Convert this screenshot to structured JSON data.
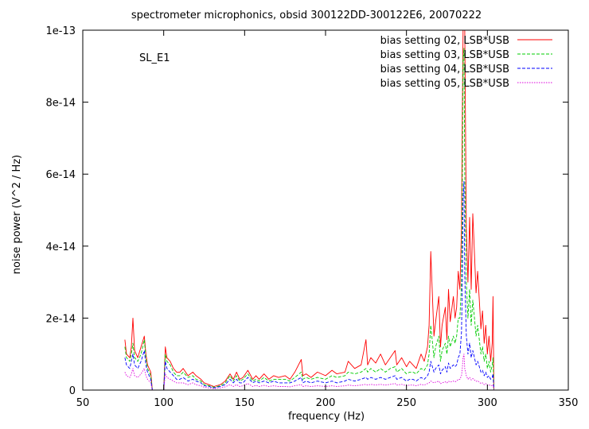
{
  "chart_data": {
    "type": "line",
    "title": "spectrometer microphonics, obsid 300122DD-300122E6, 20070222",
    "xlabel": "frequency (Hz)",
    "ylabel": "noise power (V^2 / Hz)",
    "annotation": "SL_E1",
    "xlim": [
      50,
      350
    ],
    "ylim": [
      0,
      1e-13
    ],
    "xticks": [
      50,
      100,
      150,
      200,
      250,
      300,
      350
    ],
    "xtick_labels": [
      "50",
      "100",
      "150",
      "200",
      "250",
      "300",
      "350"
    ],
    "yticks": [
      0,
      2e-14,
      4e-14,
      6e-14,
      8e-14,
      1e-13
    ],
    "ytick_labels": [
      "0",
      "2e-14",
      "4e-14",
      "6e-14",
      "8e-14",
      "1e-13"
    ],
    "grid": false,
    "legend_position": "top-right",
    "series": [
      {
        "name": "bias setting 02, LSB*USB",
        "color": "#ff0000",
        "dash": "solid",
        "x": [
          76,
          77,
          79,
          80,
          81,
          82,
          84,
          86,
          88,
          89,
          90,
          92,
          93,
          100,
          101,
          102,
          104,
          106,
          108,
          110,
          112,
          115,
          118,
          120,
          123,
          125,
          128,
          131,
          135,
          138,
          141,
          143,
          145,
          147,
          149,
          152,
          155,
          157,
          159,
          162,
          165,
          168,
          171,
          175,
          178,
          181,
          185,
          186,
          188,
          191,
          195,
          200,
          204,
          207,
          212,
          214,
          218,
          222,
          225,
          226,
          228,
          231,
          234,
          237,
          240,
          243,
          244,
          247,
          250,
          252,
          254,
          256,
          259,
          261,
          263,
          264,
          265,
          267,
          268,
          270,
          271,
          272,
          274,
          275,
          276,
          277,
          279,
          280,
          281,
          282,
          283,
          284,
          284.5,
          285,
          285.5,
          286,
          287,
          288,
          289,
          290,
          291,
          292,
          293,
          294,
          295,
          296,
          297,
          298,
          299,
          300,
          301,
          302,
          303,
          303.5,
          304
        ],
        "y": [
          1.4e-14,
          1e-14,
          9e-15,
          1.2e-14,
          2e-14,
          1.1e-14,
          9e-15,
          1.2e-14,
          1.5e-14,
          1e-14,
          7e-15,
          5e-15,
          0,
          0,
          1.2e-14,
          9e-15,
          8e-15,
          6e-15,
          5e-15,
          5e-15,
          6e-15,
          4e-15,
          5e-15,
          4e-15,
          3e-15,
          2e-15,
          1.5e-15,
          1e-15,
          1.5e-15,
          2.5e-15,
          4.5e-15,
          3e-15,
          5e-15,
          3e-15,
          3.5e-15,
          5.5e-15,
          3e-15,
          4e-15,
          3e-15,
          4.5e-15,
          3e-15,
          4e-15,
          3.5e-15,
          4e-15,
          3e-15,
          5e-15,
          8.5e-15,
          4e-15,
          4.5e-15,
          3.5e-15,
          5e-15,
          4e-15,
          5.5e-15,
          4.5e-15,
          5e-15,
          8e-15,
          6e-15,
          7e-15,
          1.4e-14,
          7e-15,
          9e-15,
          7.5e-15,
          1e-14,
          7e-15,
          9e-15,
          1.1e-14,
          7e-15,
          9e-15,
          6.5e-15,
          8e-15,
          7e-15,
          6e-15,
          1e-14,
          8e-15,
          1.2e-14,
          1.8e-14,
          3.85e-14,
          1.5e-14,
          1.9e-14,
          2.6e-14,
          1.2e-14,
          1.8e-14,
          2.3e-14,
          1.4e-14,
          2.8e-14,
          1.9e-14,
          2.6e-14,
          2e-14,
          2.3e-14,
          3.3e-14,
          2.8e-14,
          4.5e-14,
          7.5e-14,
          1e-13,
          1e-13,
          1e-13,
          4.5e-14,
          3e-14,
          4.8e-14,
          2.8e-14,
          4.9e-14,
          3.8e-14,
          2.7e-14,
          3.3e-14,
          2.5e-14,
          1.7e-14,
          2.2e-14,
          1.3e-14,
          1.8e-14,
          1e-14,
          1.5e-14,
          8e-15,
          1.3e-14,
          2.6e-14,
          0
        ]
      },
      {
        "name": "bias setting 03, LSB*USB",
        "color": "#00cc00",
        "dash": "dashed",
        "x": [
          76,
          77,
          79,
          80,
          81,
          82,
          84,
          86,
          88,
          89,
          90,
          92,
          93,
          100,
          101,
          102,
          104,
          106,
          108,
          110,
          112,
          115,
          118,
          120,
          123,
          125,
          128,
          131,
          135,
          138,
          141,
          143,
          145,
          147,
          149,
          152,
          155,
          157,
          159,
          162,
          165,
          168,
          171,
          175,
          178,
          181,
          185,
          186,
          188,
          191,
          195,
          200,
          204,
          207,
          212,
          214,
          218,
          222,
          225,
          226,
          228,
          231,
          234,
          237,
          240,
          243,
          244,
          247,
          250,
          252,
          254,
          256,
          259,
          261,
          263,
          264,
          265,
          267,
          268,
          270,
          271,
          272,
          274,
          275,
          276,
          277,
          279,
          280,
          281,
          282,
          283,
          284,
          284.5,
          285,
          285.5,
          286,
          287,
          288,
          289,
          290,
          291,
          292,
          293,
          294,
          295,
          296,
          297,
          298,
          299,
          300,
          301,
          302,
          303,
          303.5,
          304
        ],
        "y": [
          1.2e-14,
          9e-15,
          8e-15,
          1e-14,
          1.3e-14,
          9e-15,
          8e-15,
          1e-14,
          1.4e-14,
          9e-15,
          6e-15,
          4e-15,
          0,
          0,
          1e-14,
          8e-15,
          7e-15,
          5e-15,
          4e-15,
          4e-15,
          5e-15,
          3.5e-15,
          4e-15,
          3e-15,
          2.5e-15,
          1.5e-15,
          1.2e-15,
          8e-16,
          1.2e-15,
          2e-15,
          4e-15,
          2.5e-15,
          4e-15,
          2.5e-15,
          3e-15,
          4.5e-15,
          2.5e-15,
          3e-15,
          2.5e-15,
          3.5e-15,
          2.5e-15,
          3e-15,
          3e-15,
          3e-15,
          2.5e-15,
          3.5e-15,
          5e-15,
          3e-15,
          3.5e-15,
          3e-15,
          3.5e-15,
          3e-15,
          4e-15,
          3.5e-15,
          4e-15,
          5e-15,
          4.5e-15,
          5e-15,
          6e-15,
          5e-15,
          6e-15,
          5e-15,
          6e-15,
          5e-15,
          6e-15,
          6.5e-15,
          5e-15,
          6e-15,
          4.5e-15,
          5e-15,
          5e-15,
          4.5e-15,
          6e-15,
          5.5e-15,
          7e-15,
          1e-14,
          1.8e-14,
          9e-15,
          1.2e-14,
          1.5e-14,
          8e-15,
          1.1e-14,
          1.3e-14,
          1e-14,
          1.5e-14,
          1.2e-14,
          1.5e-14,
          1.3e-14,
          1.5e-14,
          2e-14,
          2e-14,
          3e-14,
          5.5e-14,
          9.2e-14,
          9.5e-14,
          6e-14,
          3e-14,
          2e-14,
          2.8e-14,
          1.8e-14,
          2.5e-14,
          2e-14,
          1.5e-14,
          1.8e-14,
          1.4e-14,
          1e-14,
          1.2e-14,
          8e-15,
          1e-14,
          6e-15,
          8e-15,
          5e-15,
          7e-15,
          9e-15,
          0
        ]
      },
      {
        "name": "bias setting 04, LSB*USB",
        "color": "#0000ff",
        "dash": "dashed",
        "x": [
          76,
          77,
          79,
          80,
          81,
          82,
          84,
          86,
          88,
          89,
          90,
          92,
          93,
          100,
          101,
          102,
          104,
          106,
          108,
          110,
          112,
          115,
          118,
          120,
          123,
          125,
          128,
          131,
          135,
          138,
          141,
          143,
          145,
          147,
          149,
          152,
          155,
          157,
          159,
          162,
          165,
          168,
          171,
          175,
          178,
          181,
          185,
          186,
          188,
          191,
          195,
          200,
          204,
          207,
          212,
          214,
          218,
          222,
          225,
          226,
          228,
          231,
          234,
          237,
          240,
          243,
          244,
          247,
          250,
          252,
          254,
          256,
          259,
          261,
          263,
          264,
          265,
          267,
          268,
          270,
          271,
          272,
          274,
          275,
          276,
          277,
          279,
          280,
          281,
          282,
          283,
          284,
          284.5,
          285,
          285.5,
          286,
          287,
          288,
          289,
          290,
          291,
          292,
          293,
          294,
          295,
          296,
          297,
          298,
          299,
          300,
          301,
          302,
          303,
          303.5,
          304
        ],
        "y": [
          9e-15,
          7e-15,
          6e-15,
          8e-15,
          1e-14,
          7e-15,
          6e-15,
          8e-15,
          1.1e-14,
          7e-15,
          5e-15,
          3e-15,
          0,
          0,
          8e-15,
          6e-15,
          5e-15,
          4e-15,
          3e-15,
          3e-15,
          3.5e-15,
          2.5e-15,
          3e-15,
          2.5e-15,
          2e-15,
          1.2e-15,
          1e-15,
          6e-16,
          1e-15,
          1.5e-15,
          3e-15,
          2e-15,
          3e-15,
          2e-15,
          2e-15,
          3.5e-15,
          2e-15,
          2.5e-15,
          2e-15,
          2.5e-15,
          2e-15,
          2.5e-15,
          2e-15,
          2e-15,
          2e-15,
          2.5e-15,
          3.5e-15,
          2e-15,
          2.5e-15,
          2e-15,
          2.5e-15,
          2e-15,
          2.5e-15,
          2e-15,
          2.5e-15,
          3e-15,
          2.5e-15,
          3e-15,
          3.5e-15,
          3e-15,
          3.5e-15,
          3e-15,
          3.5e-15,
          3e-15,
          3.5e-15,
          4e-15,
          3e-15,
          3.5e-15,
          2.5e-15,
          3e-15,
          3e-15,
          2.5e-15,
          3.5e-15,
          3e-15,
          4e-15,
          5e-15,
          8e-15,
          5e-15,
          6e-15,
          7e-15,
          4.5e-15,
          5.5e-15,
          6.5e-15,
          5e-15,
          7.5e-15,
          6e-15,
          7e-15,
          6.5e-15,
          7e-15,
          9e-15,
          1e-14,
          1.6e-14,
          3e-14,
          5.3e-14,
          5.8e-14,
          3.2e-14,
          1.5e-14,
          1e-14,
          1.3e-14,
          9e-15,
          1.1e-14,
          9e-15,
          7e-15,
          8e-15,
          6.5e-15,
          5e-15,
          5.5e-15,
          4e-15,
          5e-15,
          3.5e-15,
          4e-15,
          3e-15,
          3.5e-15,
          4.5e-15,
          0
        ]
      },
      {
        "name": "bias setting 05, LSB*USB",
        "color": "#dd00dd",
        "dash": "dotted",
        "x": [
          76,
          77,
          79,
          80,
          81,
          82,
          84,
          86,
          88,
          89,
          90,
          92,
          93,
          100,
          101,
          102,
          104,
          106,
          108,
          110,
          112,
          115,
          118,
          120,
          123,
          125,
          128,
          131,
          135,
          138,
          141,
          143,
          145,
          147,
          149,
          152,
          155,
          157,
          159,
          162,
          165,
          168,
          171,
          175,
          178,
          181,
          185,
          186,
          188,
          191,
          195,
          200,
          204,
          207,
          212,
          214,
          218,
          222,
          225,
          226,
          228,
          231,
          234,
          237,
          240,
          243,
          244,
          247,
          250,
          252,
          254,
          256,
          259,
          261,
          263,
          264,
          265,
          267,
          268,
          270,
          271,
          272,
          274,
          275,
          276,
          277,
          279,
          280,
          281,
          282,
          283,
          284,
          284.5,
          285,
          285.5,
          286,
          287,
          288,
          289,
          290,
          291,
          292,
          293,
          294,
          295,
          296,
          297,
          298,
          299,
          300,
          301,
          302,
          303,
          303.5,
          304
        ],
        "y": [
          5e-15,
          4e-15,
          3.5e-15,
          4.5e-15,
          6e-15,
          4e-15,
          3.5e-15,
          4.5e-15,
          6e-15,
          4e-15,
          3e-15,
          2e-15,
          0,
          0,
          4.5e-15,
          3.5e-15,
          3e-15,
          2.5e-15,
          2e-15,
          2e-15,
          2e-15,
          1.5e-15,
          2e-15,
          1.5e-15,
          1.2e-15,
          8e-16,
          6e-16,
          4e-16,
          6e-16,
          9e-16,
          1.5e-15,
          1e-15,
          1.5e-15,
          1e-15,
          1.2e-15,
          1.8e-15,
          1e-15,
          1.3e-15,
          1e-15,
          1.3e-15,
          1e-15,
          1.2e-15,
          1e-15,
          1e-15,
          9e-16,
          1.2e-15,
          1.5e-15,
          1e-15,
          1.2e-15,
          1e-15,
          1.2e-15,
          1e-15,
          1.2e-15,
          1e-15,
          1.2e-15,
          1.4e-15,
          1.2e-15,
          1.4e-15,
          1.6e-15,
          1.4e-15,
          1.6e-15,
          1.4e-15,
          1.6e-15,
          1.4e-15,
          1.6e-15,
          1.8e-15,
          1.4e-15,
          1.6e-15,
          1.2e-15,
          1.4e-15,
          1.4e-15,
          1.2e-15,
          1.6e-15,
          1.4e-15,
          1.8e-15,
          2e-15,
          2.5e-15,
          2e-15,
          2.2e-15,
          2.5e-15,
          1.8e-15,
          2e-15,
          2.3e-15,
          2e-15,
          2.5e-15,
          2.2e-15,
          2.5e-15,
          2.3e-15,
          2.5e-15,
          3e-15,
          3e-15,
          4e-15,
          6e-15,
          9e-15,
          1e-14,
          6e-15,
          4e-15,
          3e-15,
          3.5e-15,
          2.8e-15,
          3.2e-15,
          2.8e-15,
          2.4e-15,
          2.6e-15,
          2.2e-15,
          1.8e-15,
          2e-15,
          1.5e-15,
          1.8e-15,
          1.3e-15,
          1.5e-15,
          1.2e-15,
          1.3e-15,
          1.6e-15,
          0
        ]
      }
    ]
  }
}
